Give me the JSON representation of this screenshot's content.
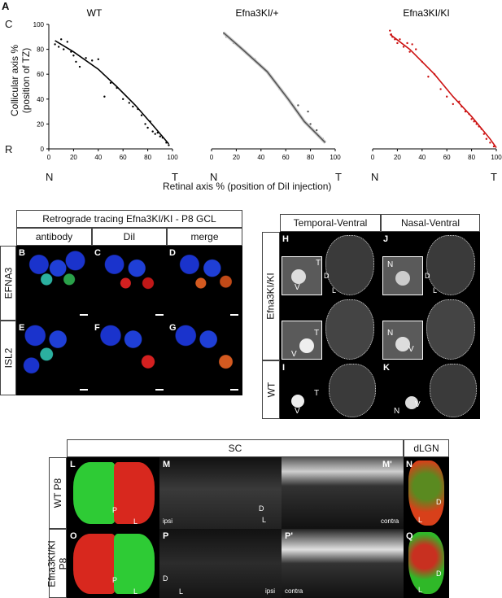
{
  "panel_a": {
    "letter": "A",
    "ylabel_line1": "Collicular axis %",
    "ylabel_line2": "(position of TZ)",
    "xlabel": "Retinal axis % (position of DiI injection)",
    "y_top_label": "C",
    "y_bottom_label": "R",
    "x_left_label": "N",
    "x_right_label": "T",
    "colors": {
      "wt": "#000000",
      "het": "#555555",
      "kiki": "#cc1111"
    }
  },
  "chart_data": [
    {
      "type": "scatter",
      "title": "WT",
      "xlim": [
        0,
        100
      ],
      "ylim": [
        0,
        100
      ],
      "xticks": [
        0,
        20,
        40,
        60,
        80,
        100
      ],
      "yticks": [
        0,
        20,
        40,
        60,
        80,
        100
      ],
      "points": [
        [
          5,
          84
        ],
        [
          8,
          82
        ],
        [
          10,
          88
        ],
        [
          12,
          80
        ],
        [
          15,
          86
        ],
        [
          18,
          78
        ],
        [
          20,
          75
        ],
        [
          22,
          70
        ],
        [
          25,
          66
        ],
        [
          30,
          73
        ],
        [
          35,
          71
        ],
        [
          40,
          72
        ],
        [
          45,
          42
        ],
        [
          50,
          53
        ],
        [
          55,
          49
        ],
        [
          60,
          40
        ],
        [
          65,
          37
        ],
        [
          68,
          34
        ],
        [
          72,
          32
        ],
        [
          75,
          27
        ],
        [
          78,
          20
        ],
        [
          80,
          17
        ],
        [
          82,
          22
        ],
        [
          84,
          14
        ],
        [
          86,
          12
        ],
        [
          88,
          13
        ],
        [
          90,
          10
        ],
        [
          92,
          9
        ],
        [
          95,
          5
        ],
        [
          97,
          3
        ]
      ],
      "fit": [
        [
          5,
          87
        ],
        [
          20,
          78
        ],
        [
          40,
          64
        ],
        [
          55,
          50
        ],
        [
          70,
          35
        ],
        [
          85,
          18
        ],
        [
          97,
          4
        ]
      ]
    },
    {
      "type": "scatter",
      "title": "Efna3KI/+",
      "xlim": [
        0,
        100
      ],
      "ylim": [
        0,
        100
      ],
      "xticks": [
        0,
        20,
        40,
        60,
        80,
        100
      ],
      "yticks": [
        0,
        20,
        40,
        60,
        80,
        100
      ],
      "points": [
        [
          10,
          93
        ],
        [
          12,
          90
        ],
        [
          18,
          85
        ],
        [
          35,
          72
        ],
        [
          55,
          48
        ],
        [
          70,
          35
        ],
        [
          78,
          30
        ],
        [
          80,
          20
        ],
        [
          85,
          15
        ],
        [
          90,
          8
        ]
      ],
      "fit": [
        [
          10,
          93
        ],
        [
          25,
          80
        ],
        [
          45,
          62
        ],
        [
          62,
          40
        ],
        [
          75,
          22
        ],
        [
          85,
          12
        ],
        [
          92,
          5
        ]
      ]
    },
    {
      "type": "scatter",
      "title": "Efna3KI/KI",
      "xlim": [
        0,
        100
      ],
      "ylim": [
        0,
        100
      ],
      "xticks": [
        0,
        20,
        40,
        60,
        80,
        100
      ],
      "yticks": [
        0,
        20,
        40,
        60,
        80,
        100
      ],
      "points": [
        [
          14,
          95
        ],
        [
          15,
          92
        ],
        [
          16,
          90
        ],
        [
          18,
          88
        ],
        [
          20,
          85
        ],
        [
          22,
          88
        ],
        [
          25,
          82
        ],
        [
          28,
          85
        ],
        [
          30,
          78
        ],
        [
          32,
          84
        ],
        [
          35,
          80
        ],
        [
          40,
          70
        ],
        [
          45,
          58
        ],
        [
          50,
          60
        ],
        [
          55,
          48
        ],
        [
          60,
          42
        ],
        [
          65,
          36
        ],
        [
          70,
          38
        ],
        [
          72,
          34
        ],
        [
          75,
          30
        ],
        [
          78,
          28
        ],
        [
          80,
          24
        ],
        [
          82,
          22
        ],
        [
          84,
          20
        ],
        [
          86,
          18
        ],
        [
          88,
          16
        ],
        [
          90,
          12
        ],
        [
          92,
          8
        ],
        [
          95,
          5
        ],
        [
          98,
          2
        ]
      ],
      "fit": [
        [
          14,
          92
        ],
        [
          30,
          80
        ],
        [
          50,
          60
        ],
        [
          65,
          42
        ],
        [
          80,
          26
        ],
        [
          95,
          8
        ],
        [
          100,
          1
        ]
      ]
    }
  ],
  "panel_b": {
    "title": "Retrograde tracing Efna3KI/KI - P8 GCL",
    "columns": [
      "antibody",
      "DiI",
      "merge"
    ],
    "rows": [
      "EFNA3",
      "ISL2"
    ],
    "letters": [
      "B",
      "C",
      "D",
      "E",
      "F",
      "G"
    ]
  },
  "panel_h": {
    "columns": [
      "Temporal-Ventral",
      "Nasal-Ventral"
    ],
    "rows": [
      "Efna3KI/KI",
      "WT"
    ],
    "letters": [
      "H",
      "J",
      "I",
      "K"
    ],
    "marks": {
      "t": "T",
      "n": "N",
      "v": "V",
      "d": "D",
      "l": "L"
    }
  },
  "panel_l": {
    "headers": [
      "SC",
      "dLGN"
    ],
    "rows": [
      "WT P8",
      "Efna3KI/KI P8"
    ],
    "letters": [
      "L",
      "M",
      "M'",
      "N",
      "O",
      "P",
      "P'",
      "Q"
    ],
    "marks": {
      "ipsi": "ipsi",
      "contra": "contra",
      "p": "P",
      "l": "L",
      "d": "D"
    }
  }
}
